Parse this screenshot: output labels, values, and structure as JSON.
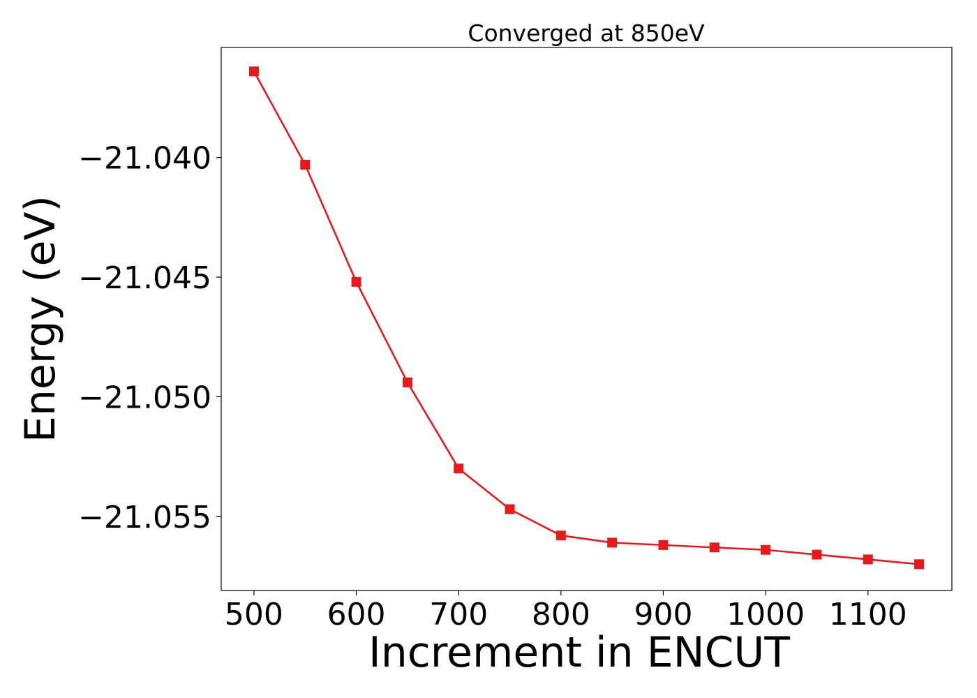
{
  "chart_data": {
    "type": "line",
    "title": "Converged at 850eV",
    "xlabel": "Increment in ENCUT",
    "ylabel": "Energy (eV)",
    "xlim": [
      468,
      1182
    ],
    "ylim": [
      -21.0581,
      -21.0354
    ],
    "x_ticks": [
      500,
      600,
      700,
      800,
      900,
      1000,
      1100
    ],
    "x_tick_labels": [
      "500",
      "600",
      "700",
      "800",
      "900",
      "1000",
      "1100"
    ],
    "y_ticks": [
      -21.04,
      -21.045,
      -21.05,
      -21.055
    ],
    "y_tick_labels": [
      "−21.040",
      "−21.045",
      "−21.050",
      "−21.055"
    ],
    "grid": false,
    "series": [
      {
        "color": "#e41a1c",
        "marker": "square",
        "x": [
          500,
          550,
          600,
          650,
          700,
          750,
          800,
          850,
          900,
          950,
          1000,
          1050,
          1100,
          1150
        ],
        "y": [
          -21.0364,
          -21.0403,
          -21.0452,
          -21.0494,
          -21.053,
          -21.0547,
          -21.0558,
          -21.0561,
          -21.0562,
          -21.0563,
          -21.0564,
          -21.0566,
          -21.0568,
          -21.057
        ]
      }
    ]
  }
}
